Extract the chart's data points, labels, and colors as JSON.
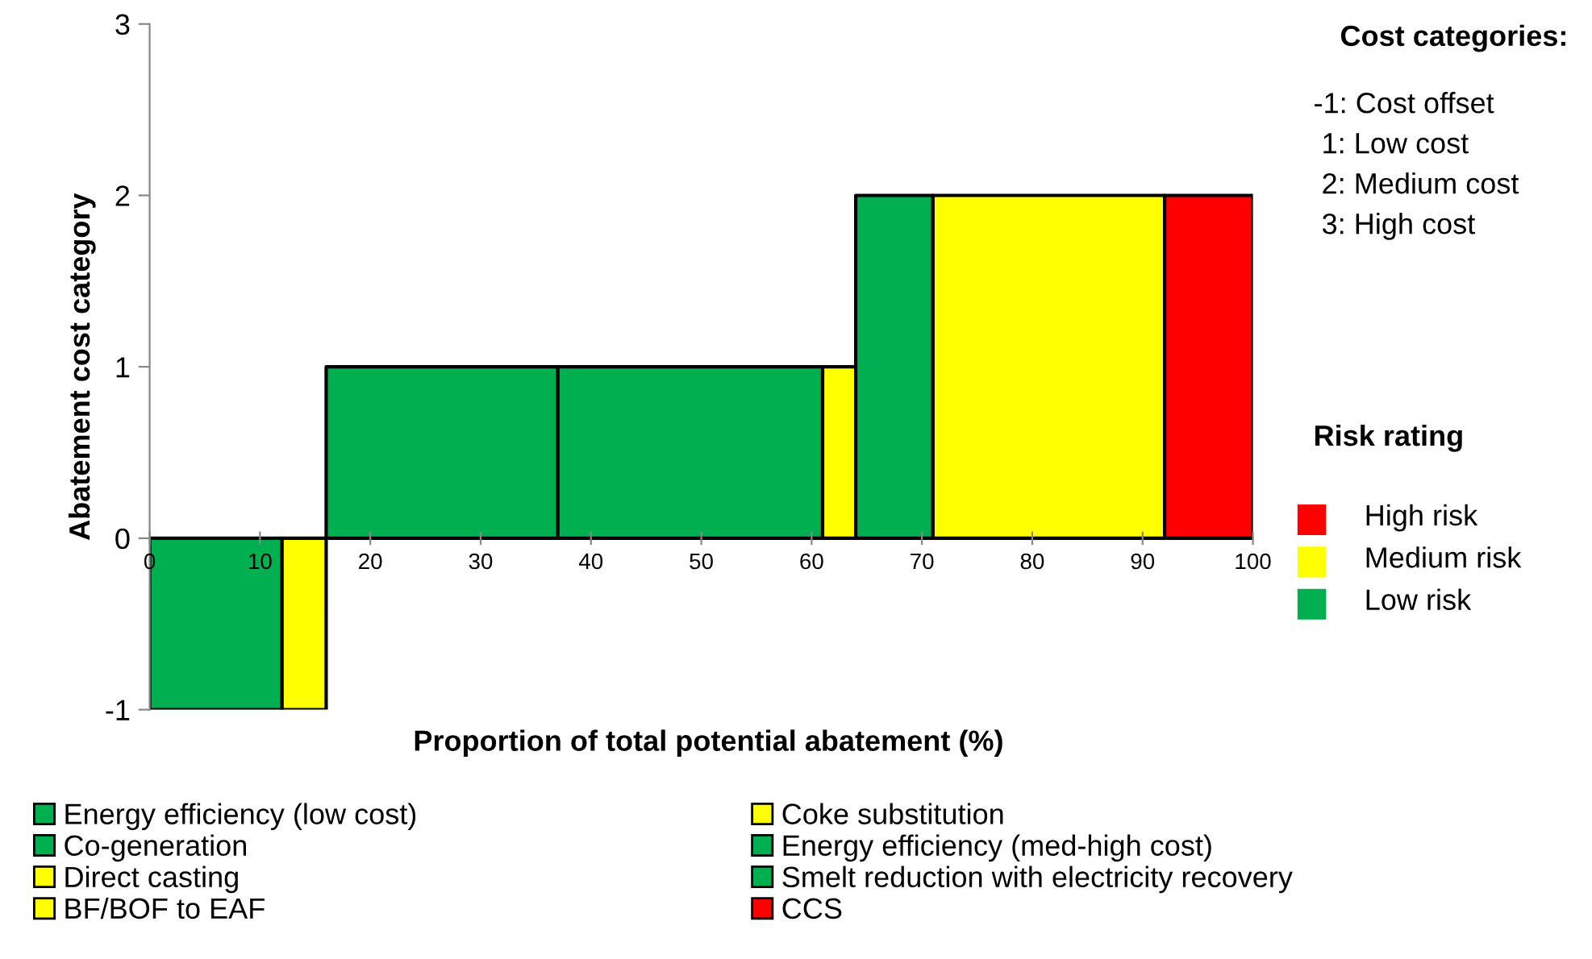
{
  "chart_data": {
    "type": "area",
    "xlabel": "Proportion of total potential abatement (%)",
    "ylabel": "Abatement cost category",
    "xlim": [
      0,
      100
    ],
    "xticks": [
      0,
      10,
      20,
      30,
      40,
      50,
      60,
      70,
      80,
      90,
      100
    ],
    "ylim": [
      -1,
      3
    ],
    "yticks": [
      -1,
      0,
      1,
      2,
      3
    ],
    "grid": false,
    "legend": "bottom",
    "series": [
      {
        "name": "Energy efficiency (low cost)",
        "color": "#00b050",
        "x": [
          0,
          12
        ],
        "values": [
          -1,
          -1
        ]
      },
      {
        "name": "Coke substitution",
        "color": "#ffff00",
        "x": [
          12,
          16
        ],
        "values": [
          -1,
          -1
        ]
      },
      {
        "name": "Co-generation",
        "color": "#00b050",
        "x": [
          16,
          37
        ],
        "values": [
          1,
          1
        ]
      },
      {
        "name": "Energy efficiency (med-high cost)",
        "color": "#00b050",
        "x": [
          37,
          61
        ],
        "values": [
          1,
          1
        ]
      },
      {
        "name": "Direct casting",
        "color": "#ffff00",
        "x": [
          61,
          64
        ],
        "values": [
          1,
          1
        ]
      },
      {
        "name": "Smelt reduction with electricity recovery",
        "color": "#00b050",
        "x": [
          64,
          71
        ],
        "values": [
          2,
          2
        ]
      },
      {
        "name": "BF/BOF to EAF",
        "color": "#ffff00",
        "x": [
          71,
          92
        ],
        "values": [
          2,
          2
        ]
      },
      {
        "name": "CCS",
        "color": "#ff0000",
        "x": [
          92,
          100
        ],
        "values": [
          2,
          2
        ]
      }
    ],
    "annotations": [
      "Cost categories:",
      "-1: Cost offset",
      " 1: Low cost",
      " 2: Medium cost",
      " 3: High cost",
      "Risk rating",
      "High risk",
      "Medium risk",
      "Low risk"
    ]
  }
}
